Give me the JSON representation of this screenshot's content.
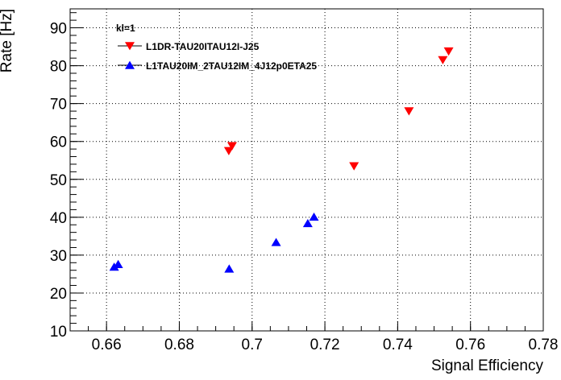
{
  "chart_data": {
    "type": "scatter",
    "title": "",
    "xlabel": "Signal Efficiency",
    "ylabel": "Rate [Hz]",
    "xlim": [
      0.65,
      0.78
    ],
    "ylim": [
      10,
      95
    ],
    "x_ticks": [
      0.66,
      0.68,
      0.7,
      0.72,
      0.74,
      0.76,
      0.78
    ],
    "x_tick_labels": [
      "0.66",
      "0.68",
      "0.7",
      "0.72",
      "0.74",
      "0.76",
      "0.78"
    ],
    "y_ticks": [
      10,
      20,
      30,
      40,
      50,
      60,
      70,
      80,
      90
    ],
    "y_tick_labels": [
      "10",
      "20",
      "30",
      "40",
      "50",
      "60",
      "70",
      "80",
      "90"
    ],
    "grid": true,
    "legend": {
      "header": "kl=1",
      "placement": "top-left"
    },
    "series": [
      {
        "name": "L1DR-TAU20ITAU12I-J25",
        "color": "#ff0000",
        "marker": "triangle-down",
        "points": [
          {
            "x": 0.6936,
            "y": 57.5
          },
          {
            "x": 0.6945,
            "y": 58.8
          },
          {
            "x": 0.728,
            "y": 53.5
          },
          {
            "x": 0.7431,
            "y": 68.0
          },
          {
            "x": 0.7524,
            "y": 81.5
          },
          {
            "x": 0.754,
            "y": 83.8
          }
        ]
      },
      {
        "name": "L1TAU20IM_2TAU12IM_4J12p0ETA25",
        "color": "#0000ff",
        "marker": "triangle-up",
        "points": [
          {
            "x": 0.6621,
            "y": 26.9
          },
          {
            "x": 0.6632,
            "y": 27.6
          },
          {
            "x": 0.6937,
            "y": 26.4
          },
          {
            "x": 0.7066,
            "y": 33.4
          },
          {
            "x": 0.7153,
            "y": 38.4
          },
          {
            "x": 0.717,
            "y": 40.1
          }
        ]
      }
    ]
  }
}
